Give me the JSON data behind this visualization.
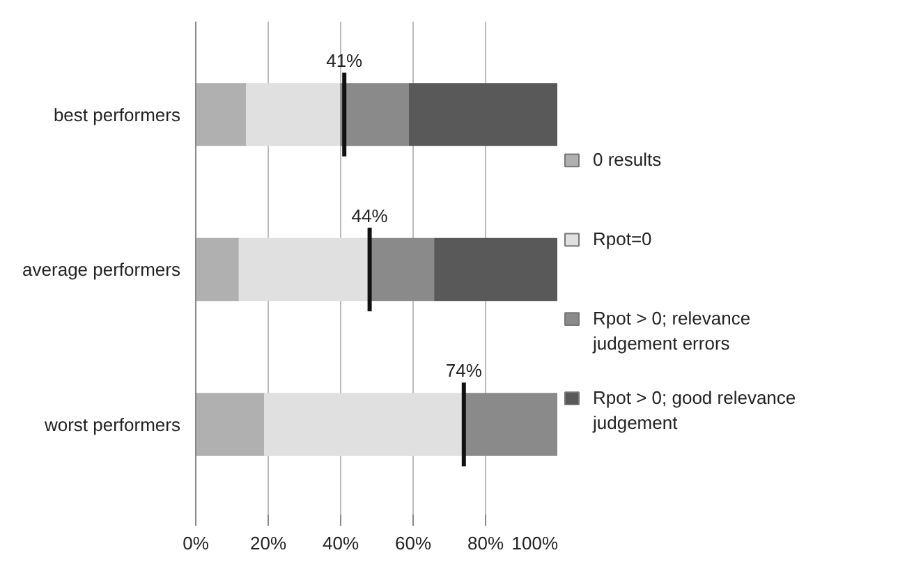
{
  "chart_data": {
    "type": "bar",
    "orientation": "horizontal",
    "stacked": true,
    "categories": [
      "best performers",
      "average performers",
      "worst performers"
    ],
    "series": [
      {
        "name": "0 results",
        "color": "#b0b0b0",
        "values": [
          14,
          12,
          19
        ]
      },
      {
        "name": "Rpot=0",
        "color": "#e0e0e0",
        "values": [
          26,
          36,
          55
        ]
      },
      {
        "name": "Rpot > 0; relevance judgement errors",
        "color": "#8a8a8a",
        "values": [
          19,
          18,
          26
        ]
      },
      {
        "name": "Rpot > 0; good relevance judgement",
        "color": "#595959",
        "values": [
          41,
          34,
          0
        ]
      }
    ],
    "xlim": [
      0,
      100
    ],
    "xticks": [
      {
        "value": 0,
        "label": "0%"
      },
      {
        "value": 20,
        "label": "20%"
      },
      {
        "value": 40,
        "label": "40%"
      },
      {
        "value": 60,
        "label": "60%"
      },
      {
        "value": 80,
        "label": "80%"
      },
      {
        "value": 100,
        "label": "100%"
      }
    ],
    "grid": "x",
    "legend": "right",
    "annotations": [
      {
        "text": "41%",
        "x": 41,
        "y": "best performers"
      },
      {
        "text": "44%",
        "x": 48,
        "y": "average performers"
      },
      {
        "text": "74%",
        "x": 74,
        "y": "worst performers"
      }
    ]
  }
}
